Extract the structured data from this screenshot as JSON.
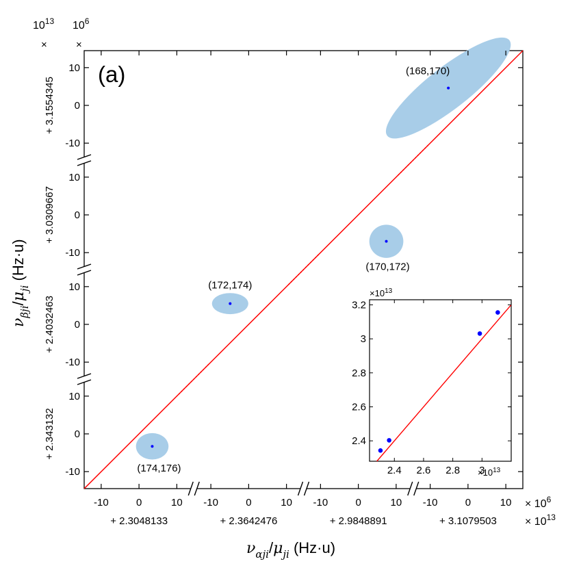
{
  "chart_data": {
    "type": "scatter",
    "panel_label": "(a)",
    "exponent_labels": {
      "top_left_outer": "10",
      "top_left_outer_sup": "13",
      "top_left_inner": "10",
      "top_left_inner_sup": "6",
      "times": "×",
      "bottom_right_1": "× 10",
      "bottom_right_1_sup": "6",
      "bottom_right_2": "× 10",
      "bottom_right_2_sup": "13"
    },
    "xlabel": {
      "nu": "ν",
      "nu_sub": "αji",
      "slash": "/",
      "mu": "μ",
      "mu_sub": "ji",
      "unit": " (Hz·u)"
    },
    "ylabel": {
      "nu": "ν",
      "nu_sub": "βji",
      "slash": "/",
      "mu": "μ",
      "mu_sub": "ji",
      "unit": " (Hz·u)"
    },
    "segment_ticks": [
      -10,
      0,
      10
    ],
    "segment_range": [
      -14.5,
      14.5
    ],
    "x_segment_offsets": [
      "+ 2.3048133",
      "+ 2.3642476",
      "+ 2.9848891",
      "+ 3.1079503"
    ],
    "y_segment_offsets": [
      "+ 2.343132",
      "+ 2.4032463",
      "+ 3.0309667",
      "+ 3.1554345"
    ],
    "points": [
      {
        "label": "(174,176)",
        "xseg": 0,
        "x": 3.5,
        "yseg": 0,
        "y": -3.3,
        "ellipse": {
          "rx": 4.3,
          "ry": 3.5,
          "angle": 0
        }
      },
      {
        "label": "(172,174)",
        "xseg": 1,
        "x": -4.9,
        "yseg": 1,
        "y": 5.5,
        "ellipse": {
          "rx": 4.8,
          "ry": 2.8,
          "angle": 0
        }
      },
      {
        "label": "(170,172)",
        "xseg": 2,
        "x": 7.4,
        "yseg": 2,
        "y": -7.0,
        "ellipse": {
          "rx": 4.5,
          "ry": 4.4,
          "angle": 0
        }
      },
      {
        "label": "(168,170)",
        "xseg": 3,
        "x": -5.2,
        "yseg": 3,
        "y": 4.6,
        "ellipse": {
          "rx": 20.5,
          "ry": 5.5,
          "angle": -38
        }
      }
    ],
    "inset": {
      "xlim": [
        2.23,
        3.2
      ],
      "ylim": [
        2.28,
        3.23
      ],
      "xticks": [
        2.4,
        2.6,
        2.8,
        3
      ],
      "xtick_labels": [
        "2.4",
        "2.6",
        "2.8",
        "3"
      ],
      "yticks": [
        2.4,
        2.6,
        2.8,
        3,
        3.2
      ],
      "ytick_labels": [
        "2.4",
        "2.6",
        "2.8",
        "3",
        "3.2"
      ],
      "x_exponent": "×10",
      "x_exponent_sup": "13",
      "y_exponent": "×10",
      "y_exponent_sup": "13",
      "points": [
        {
          "x": 2.3048,
          "y": 2.3431
        },
        {
          "x": 2.3642,
          "y": 2.4032
        },
        {
          "x": 2.9849,
          "y": 3.031
        },
        {
          "x": 3.108,
          "y": 3.1554
        }
      ]
    },
    "colors": {
      "line": "#ff0000",
      "point": "#0000ff",
      "ellipse": "#a8cde8",
      "axis": "#000000"
    }
  }
}
